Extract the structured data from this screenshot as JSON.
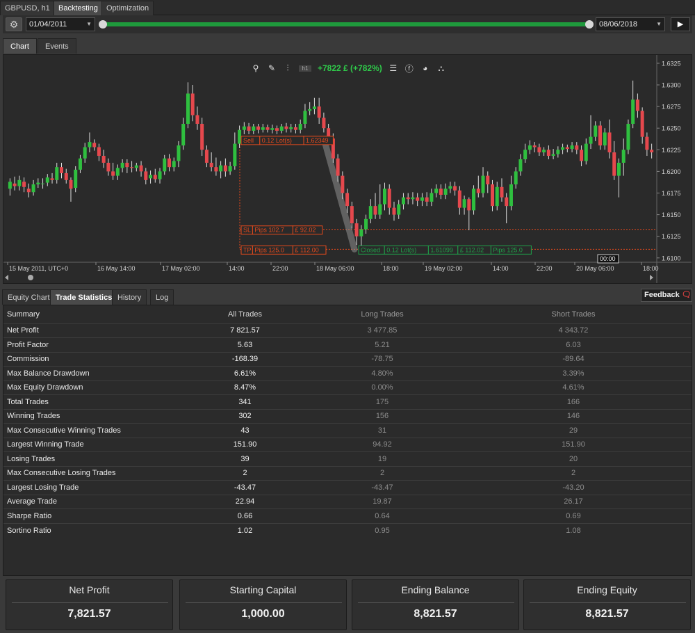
{
  "top_tabs": [
    {
      "label": "GBPUSD, h1"
    },
    {
      "label": "Backtesting"
    },
    {
      "label": "Optimization"
    }
  ],
  "controls": {
    "start_date": "01/04/2011",
    "end_date": "08/06/2018",
    "settings_icon": "gear-icon",
    "play_icon": "play-icon"
  },
  "chart_tabs": [
    {
      "label": "Chart"
    },
    {
      "label": "Events"
    }
  ],
  "chart_toolbar": {
    "profit_text": "+7822 £ (+782%)",
    "icons": [
      "zoom-icon",
      "drawing-icon",
      "indicators-icon",
      "period-icon",
      "trade-list-icon",
      "facebook-icon",
      "chart-mode-icon",
      "share-icon"
    ],
    "period_label": "h1"
  },
  "chart_data": {
    "type": "candlestick",
    "symbol": "GBPUSD",
    "timeframe": "h1",
    "y_ticks": [
      "1.6325",
      "1.6300",
      "1.6275",
      "1.6250",
      "1.6225",
      "1.6200",
      "1.6175",
      "1.6150",
      "1.6125",
      "1.6100"
    ],
    "ylim": [
      1.6095,
      1.6333
    ],
    "x_ticks": [
      "15 May 2011, UTC+0",
      "16 May 14:00",
      "17 May 02:00",
      "14:00",
      "22:00",
      "18 May 06:00",
      "18:00",
      "19 May 02:00",
      "14:00",
      "22:00",
      "20 May 06:00",
      "18:00"
    ],
    "crosshair_label": "00:00",
    "candles": [
      [
        1.618,
        1.6188,
        1.6172,
        1.6192
      ],
      [
        1.6186,
        1.6183,
        1.6178,
        1.6194
      ],
      [
        1.6183,
        1.619,
        1.6178,
        1.6195
      ],
      [
        1.6188,
        1.6182,
        1.6176,
        1.6193
      ],
      [
        1.618,
        1.6176,
        1.617,
        1.6186
      ],
      [
        1.6176,
        1.6185,
        1.6172,
        1.619
      ],
      [
        1.6185,
        1.6187,
        1.6181,
        1.6192
      ],
      [
        1.6186,
        1.6186,
        1.618,
        1.6192
      ],
      [
        1.6187,
        1.6193,
        1.6183,
        1.6197
      ],
      [
        1.6192,
        1.619,
        1.6186,
        1.6198
      ],
      [
        1.619,
        1.6205,
        1.6186,
        1.621
      ],
      [
        1.6205,
        1.6198,
        1.6192,
        1.621
      ],
      [
        1.6198,
        1.619,
        1.6186,
        1.6203
      ],
      [
        1.619,
        1.618,
        1.6165,
        1.6193
      ],
      [
        1.6181,
        1.6202,
        1.6176,
        1.6206
      ],
      [
        1.6202,
        1.6215,
        1.6198,
        1.6219
      ],
      [
        1.6215,
        1.6228,
        1.621,
        1.6233
      ],
      [
        1.6228,
        1.6234,
        1.6222,
        1.6245
      ],
      [
        1.6233,
        1.6228,
        1.6224,
        1.6237
      ],
      [
        1.6228,
        1.6218,
        1.6212,
        1.6232
      ],
      [
        1.6218,
        1.621,
        1.6204,
        1.6225
      ],
      [
        1.621,
        1.62,
        1.6195,
        1.6215
      ],
      [
        1.62,
        1.6195,
        1.619,
        1.621
      ],
      [
        1.6195,
        1.6204,
        1.619,
        1.6208
      ],
      [
        1.6204,
        1.621,
        1.6199,
        1.6214
      ],
      [
        1.621,
        1.6205,
        1.6198,
        1.6214
      ],
      [
        1.6205,
        1.6204,
        1.6199,
        1.6212
      ],
      [
        1.6204,
        1.6207,
        1.62,
        1.621
      ],
      [
        1.6207,
        1.62,
        1.6194,
        1.6212
      ],
      [
        1.62,
        1.619,
        1.6185,
        1.6204
      ],
      [
        1.6192,
        1.6196,
        1.6186,
        1.6201
      ],
      [
        1.6196,
        1.6191,
        1.6187,
        1.6203
      ],
      [
        1.6191,
        1.62,
        1.6186,
        1.6204
      ],
      [
        1.62,
        1.6215,
        1.6196,
        1.6219
      ],
      [
        1.6215,
        1.6205,
        1.62,
        1.622
      ],
      [
        1.6205,
        1.6212,
        1.62,
        1.6216
      ],
      [
        1.6212,
        1.623,
        1.6205,
        1.6235
      ],
      [
        1.623,
        1.6255,
        1.6225,
        1.6262
      ],
      [
        1.6255,
        1.629,
        1.625,
        1.6303
      ],
      [
        1.629,
        1.6265,
        1.6258,
        1.63
      ],
      [
        1.6265,
        1.6255,
        1.6248,
        1.6275
      ],
      [
        1.6255,
        1.6225,
        1.6218,
        1.6262
      ],
      [
        1.6225,
        1.621,
        1.6205,
        1.623
      ],
      [
        1.621,
        1.6205,
        1.62,
        1.6222
      ],
      [
        1.6205,
        1.62,
        1.6195,
        1.6216
      ],
      [
        1.62,
        1.6207,
        1.6192,
        1.6212
      ],
      [
        1.6207,
        1.62,
        1.6194,
        1.6215
      ],
      [
        1.62,
        1.6206,
        1.6196,
        1.6211
      ],
      [
        1.6206,
        1.6232,
        1.6202,
        1.6245
      ],
      [
        1.6232,
        1.6248,
        1.6227,
        1.6253
      ],
      [
        1.6248,
        1.6252,
        1.6243,
        1.6257
      ],
      [
        1.6252,
        1.6247,
        1.6243,
        1.6256
      ],
      [
        1.6247,
        1.6252,
        1.6243,
        1.6255
      ],
      [
        1.6252,
        1.6248,
        1.6244,
        1.6255
      ],
      [
        1.6248,
        1.6251,
        1.6245,
        1.6255
      ],
      [
        1.6251,
        1.6248,
        1.6245,
        1.6254
      ],
      [
        1.6248,
        1.625,
        1.6244,
        1.6254
      ],
      [
        1.625,
        1.6247,
        1.6243,
        1.6253
      ],
      [
        1.6247,
        1.6252,
        1.6244,
        1.6255
      ],
      [
        1.6252,
        1.6249,
        1.6245,
        1.6256
      ],
      [
        1.6249,
        1.6251,
        1.6245,
        1.6255
      ],
      [
        1.6251,
        1.6248,
        1.6244,
        1.6255
      ],
      [
        1.6248,
        1.6255,
        1.6244,
        1.626
      ],
      [
        1.6255,
        1.627,
        1.625,
        1.6278
      ],
      [
        1.627,
        1.6272,
        1.6265,
        1.628
      ],
      [
        1.6272,
        1.6275,
        1.6266,
        1.6285
      ],
      [
        1.6275,
        1.6262,
        1.6255,
        1.6285
      ],
      [
        1.6262,
        1.625,
        1.6245,
        1.6268
      ],
      [
        1.625,
        1.6238,
        1.6232,
        1.6255
      ],
      [
        1.6238,
        1.6215,
        1.621,
        1.6244
      ],
      [
        1.6215,
        1.6195,
        1.6188,
        1.622
      ],
      [
        1.6195,
        1.6175,
        1.6168,
        1.62
      ],
      [
        1.6175,
        1.616,
        1.6152,
        1.618
      ],
      [
        1.616,
        1.614,
        1.6134,
        1.6165
      ],
      [
        1.614,
        1.6125,
        1.6115,
        1.6145
      ],
      [
        1.6125,
        1.6133,
        1.6112,
        1.6138
      ],
      [
        1.6133,
        1.6145,
        1.6128,
        1.615
      ],
      [
        1.6145,
        1.616,
        1.614,
        1.6168
      ],
      [
        1.616,
        1.615,
        1.6145,
        1.6175
      ],
      [
        1.615,
        1.6162,
        1.6145,
        1.6185
      ],
      [
        1.6162,
        1.618,
        1.6155,
        1.6187
      ],
      [
        1.618,
        1.6158,
        1.615,
        1.6185
      ],
      [
        1.6158,
        1.615,
        1.6143,
        1.6165
      ],
      [
        1.615,
        1.6162,
        1.6145,
        1.6167
      ],
      [
        1.6162,
        1.617,
        1.6156,
        1.6175
      ],
      [
        1.617,
        1.6168,
        1.6162,
        1.6175
      ],
      [
        1.6168,
        1.617,
        1.6162,
        1.6176
      ],
      [
        1.617,
        1.6166,
        1.616,
        1.6175
      ],
      [
        1.6166,
        1.617,
        1.616,
        1.6175
      ],
      [
        1.617,
        1.6165,
        1.616,
        1.6176
      ],
      [
        1.6165,
        1.6175,
        1.616,
        1.618
      ],
      [
        1.6175,
        1.618,
        1.617,
        1.6185
      ],
      [
        1.618,
        1.6173,
        1.6168,
        1.6185
      ],
      [
        1.6173,
        1.618,
        1.6168,
        1.6186
      ],
      [
        1.618,
        1.6183,
        1.6175,
        1.6188
      ],
      [
        1.6183,
        1.6178,
        1.6172,
        1.6188
      ],
      [
        1.6178,
        1.6158,
        1.615,
        1.6183
      ],
      [
        1.6158,
        1.6168,
        1.615,
        1.6172
      ],
      [
        1.6168,
        1.6155,
        1.6132,
        1.617
      ],
      [
        1.6155,
        1.618,
        1.615,
        1.6184
      ],
      [
        1.618,
        1.6175,
        1.617,
        1.6195
      ],
      [
        1.6175,
        1.6195,
        1.617,
        1.6205
      ],
      [
        1.6195,
        1.6185,
        1.6175,
        1.62
      ],
      [
        1.6185,
        1.616,
        1.6154,
        1.619
      ],
      [
        1.616,
        1.6182,
        1.6155,
        1.6188
      ],
      [
        1.6182,
        1.617,
        1.6165,
        1.6192
      ],
      [
        1.617,
        1.616,
        1.614,
        1.6175
      ],
      [
        1.616,
        1.6185,
        1.6155,
        1.6195
      ],
      [
        1.6185,
        1.62,
        1.618,
        1.6205
      ],
      [
        1.62,
        1.6214,
        1.6195,
        1.622
      ],
      [
        1.6214,
        1.6225,
        1.621,
        1.6232
      ],
      [
        1.6225,
        1.623,
        1.622,
        1.6236
      ],
      [
        1.623,
        1.6228,
        1.6222,
        1.6234
      ],
      [
        1.6228,
        1.6222,
        1.6218,
        1.6232
      ],
      [
        1.6222,
        1.6225,
        1.6218,
        1.6228
      ],
      [
        1.6225,
        1.6218,
        1.6214,
        1.623
      ],
      [
        1.6218,
        1.622,
        1.6214,
        1.6226
      ],
      [
        1.622,
        1.6225,
        1.6216,
        1.6229
      ],
      [
        1.6225,
        1.6228,
        1.622,
        1.6232
      ],
      [
        1.6228,
        1.6226,
        1.6222,
        1.6231
      ],
      [
        1.6226,
        1.623,
        1.6222,
        1.6234
      ],
      [
        1.623,
        1.6225,
        1.622,
        1.6234
      ],
      [
        1.6225,
        1.6212,
        1.6206,
        1.623
      ],
      [
        1.6212,
        1.6232,
        1.6208,
        1.6238
      ],
      [
        1.6232,
        1.624,
        1.6226,
        1.6265
      ],
      [
        1.624,
        1.6253,
        1.6235,
        1.6258
      ],
      [
        1.6253,
        1.623,
        1.6225,
        1.6258
      ],
      [
        1.623,
        1.6245,
        1.6225,
        1.625
      ],
      [
        1.6245,
        1.6222,
        1.6215,
        1.626
      ],
      [
        1.6222,
        1.6195,
        1.619,
        1.6235
      ],
      [
        1.6195,
        1.621,
        1.617,
        1.6215
      ],
      [
        1.621,
        1.6225,
        1.6195,
        1.6238
      ],
      [
        1.6225,
        1.6255,
        1.622,
        1.626
      ],
      [
        1.6255,
        1.6283,
        1.625,
        1.6305
      ],
      [
        1.6283,
        1.627,
        1.6262,
        1.629
      ],
      [
        1.627,
        1.624,
        1.6232,
        1.6274
      ],
      [
        1.624,
        1.6225,
        1.6218,
        1.6245
      ],
      [
        1.6225,
        1.6222,
        1.6215,
        1.6232
      ]
    ],
    "trade_lines": {
      "entry": 1.6235,
      "stop_loss": 1.6133,
      "take_profit": 1.611,
      "sell_label": [
        "Sell",
        "0.12 Lot(s)",
        "1.62349"
      ],
      "sl_label": [
        "SL",
        "Pips 102.7",
        "£ 92.02"
      ],
      "tp_label": [
        "TP",
        "Pips 125.0",
        "£ 112.00"
      ],
      "closed_label": [
        "Closed",
        "0.12 Lot(s)",
        "1.61099",
        "£ 112.02",
        "Pips 125.0"
      ]
    },
    "colors": {
      "up": "#2fbf3f",
      "down": "#e5484d",
      "trade": "#e84a1c",
      "closed": "#1fa34a",
      "background": "#2a2a2a"
    }
  },
  "bottom_tabs": [
    {
      "label": "Equity Chart"
    },
    {
      "label": "Trade Statistics"
    },
    {
      "label": "History"
    },
    {
      "label": "Log"
    }
  ],
  "feedback": {
    "label": "Feedback",
    "icon": "speech-bubble-icon"
  },
  "stats": {
    "headers": [
      "Summary",
      "All Trades",
      "Long Trades",
      "Short Trades"
    ],
    "rows": [
      [
        "Net Profit",
        "7 821.57",
        "3 477.85",
        "4 343.72"
      ],
      [
        "Profit Factor",
        "5.63",
        "5.21",
        "6.03"
      ],
      [
        "Commission",
        "-168.39",
        "-78.75",
        "-89.64"
      ],
      [
        "Max Balance Drawdown",
        "6.61%",
        "4.80%",
        "3.39%"
      ],
      [
        "Max Equity Drawdown",
        "8.47%",
        "0.00%",
        "4.61%"
      ],
      [
        "Total Trades",
        "341",
        "175",
        "166"
      ],
      [
        "Winning Trades",
        "302",
        "156",
        "146"
      ],
      [
        "Max Consecutive Winning Trades",
        "43",
        "31",
        "29"
      ],
      [
        "Largest Winning Trade",
        "151.90",
        "94.92",
        "151.90"
      ],
      [
        "Losing Trades",
        "39",
        "19",
        "20"
      ],
      [
        "Max Consecutive Losing Trades",
        "2",
        "2",
        "2"
      ],
      [
        "Largest Losing Trade",
        "-43.47",
        "-43.47",
        "-43.20"
      ],
      [
        "Average Trade",
        "22.94",
        "19.87",
        "26.17"
      ],
      [
        "Sharpe Ratio",
        "0.66",
        "0.64",
        "0.69"
      ],
      [
        "Sortino Ratio",
        "1.02",
        "0.95",
        "1.08"
      ]
    ]
  },
  "cards": [
    {
      "label": "Net Profit",
      "value": "7,821.57"
    },
    {
      "label": "Starting Capital",
      "value": "1,000.00"
    },
    {
      "label": "Ending Balance",
      "value": "8,821.57"
    },
    {
      "label": "Ending Equity",
      "value": "8,821.57"
    }
  ]
}
